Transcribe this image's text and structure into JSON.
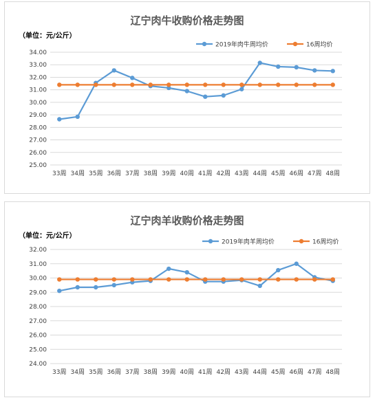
{
  "chart_data": [
    {
      "type": "line",
      "title": "辽宁肉牛收购价格走势图",
      "unit_label": "（单位：元/公斤）",
      "categories": [
        "33周",
        "34周",
        "35周",
        "36周",
        "37周",
        "38周",
        "39周",
        "40周",
        "41周",
        "42周",
        "43周",
        "44周",
        "45周",
        "46周",
        "47周",
        "48周"
      ],
      "ylim": [
        25.0,
        34.0
      ],
      "yticks": [
        "25.00",
        "26.00",
        "27.00",
        "28.00",
        "29.00",
        "30.00",
        "31.00",
        "32.00",
        "33.00",
        "34.00"
      ],
      "grid": true,
      "legend_position": "top-right",
      "series": [
        {
          "name": "2019年肉牛周均价",
          "color": "#5b9bd5",
          "values": [
            28.65,
            28.85,
            31.55,
            32.55,
            31.95,
            31.3,
            31.15,
            30.9,
            30.45,
            30.55,
            31.05,
            33.15,
            32.85,
            32.8,
            32.55,
            32.5
          ]
        },
        {
          "name": "16周均价",
          "color": "#ed7d31",
          "values": [
            31.4,
            31.4,
            31.4,
            31.4,
            31.4,
            31.4,
            31.4,
            31.4,
            31.4,
            31.4,
            31.4,
            31.4,
            31.4,
            31.4,
            31.4,
            31.4
          ]
        }
      ]
    },
    {
      "type": "line",
      "title": "辽宁肉羊收购价格走势图",
      "unit_label": "（单位：元/公斤）",
      "categories": [
        "33周",
        "34周",
        "35周",
        "36周",
        "37周",
        "38周",
        "39周",
        "40周",
        "41周",
        "42周",
        "43周",
        "44周",
        "45周",
        "46周",
        "47周",
        "48周"
      ],
      "ylim": [
        24.0,
        32.0
      ],
      "yticks": [
        "24.00",
        "25.00",
        "26.00",
        "27.00",
        "28.00",
        "29.00",
        "30.00",
        "31.00",
        "32.00"
      ],
      "grid": true,
      "legend_position": "top-right",
      "series": [
        {
          "name": "2019年肉羊周均价",
          "color": "#5b9bd5",
          "values": [
            29.1,
            29.35,
            29.35,
            29.5,
            29.7,
            29.8,
            30.65,
            30.4,
            29.75,
            29.75,
            29.85,
            29.45,
            30.55,
            31.0,
            30.05,
            29.8
          ]
        },
        {
          "name": "16周均价",
          "color": "#ed7d31",
          "values": [
            29.9,
            29.9,
            29.9,
            29.9,
            29.9,
            29.9,
            29.9,
            29.9,
            29.9,
            29.9,
            29.9,
            29.9,
            29.9,
            29.9,
            29.9,
            29.9
          ]
        }
      ]
    }
  ]
}
